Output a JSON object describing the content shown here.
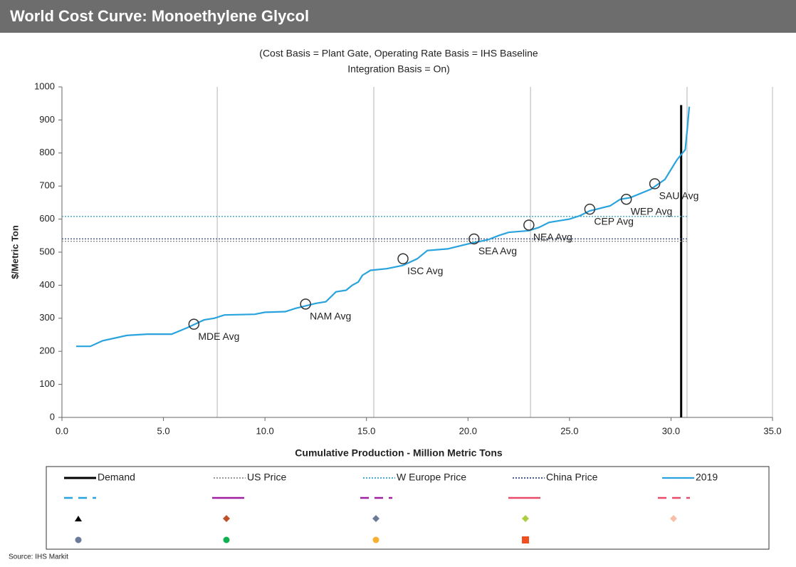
{
  "chart_data": {
    "type": "line",
    "title": "World Cost Curve:  Monoethylene Glycol",
    "subtitle": [
      "(Cost Basis = Plant Gate, Operating Rate Basis = IHS Baseline",
      "Integration Basis = On)"
    ],
    "xlabel": "Cumulative Production - Million Metric Tons",
    "ylabel": "$/Metric Ton",
    "source": "Source: IHS Markit",
    "xlim": [
      0,
      35
    ],
    "ylim": [
      0,
      1000
    ],
    "xticks": [
      {
        "value": 0,
        "label": "0.0"
      },
      {
        "value": 5,
        "label": "5.0"
      },
      {
        "value": 10,
        "label": "10.0"
      },
      {
        "value": 15,
        "label": "15.0"
      },
      {
        "value": 20,
        "label": "20.0"
      },
      {
        "value": 25,
        "label": "25.0"
      },
      {
        "value": 30,
        "label": "30.0"
      },
      {
        "value": 35,
        "label": "35.0"
      }
    ],
    "yticks": [
      0,
      100,
      200,
      300,
      400,
      500,
      600,
      700,
      800,
      900,
      1000
    ],
    "vertical_lines": [
      7.65,
      15.36,
      23.08,
      30.79
    ],
    "series": [
      {
        "name": "Demand",
        "color": "#000000",
        "dash": "solid",
        "width": 3,
        "x": [
          30.5,
          30.5
        ],
        "values": [
          0,
          945
        ]
      },
      {
        "name": "US Price",
        "color": "#9a9a9a",
        "dash": "dotted",
        "width": 1.5,
        "x": [
          0,
          30.8
        ],
        "values": [
          533,
          533
        ]
      },
      {
        "name": "W Europe Price",
        "color": "#4bacc6",
        "dash": "dotted",
        "width": 1.5,
        "x": [
          0,
          30.8
        ],
        "values": [
          608,
          608
        ]
      },
      {
        "name": "China Price",
        "color": "#4a5a8a",
        "dash": "dotted",
        "width": 1.5,
        "x": [
          0,
          30.8
        ],
        "values": [
          540,
          540
        ]
      },
      {
        "name": "2019",
        "color": "#29a3dd",
        "dash": "solid",
        "width": 2.2,
        "x": [
          0.7,
          1.4,
          2,
          3.2,
          4.2,
          5.4,
          6.2,
          7,
          7.5,
          8,
          9.5,
          10,
          11,
          11.5,
          12.5,
          13,
          13.5,
          14,
          14.3,
          14.6,
          14.8,
          15.2,
          16,
          16.8,
          17.5,
          18,
          19,
          20,
          21,
          21.5,
          22,
          23,
          23.5,
          24,
          25,
          25.5,
          26,
          27,
          27.5,
          28,
          29,
          29.7,
          30,
          30.3,
          30.7,
          30.8,
          30.9
        ],
        "values": [
          215,
          215,
          232,
          248,
          252,
          252,
          272,
          295,
          300,
          310,
          312,
          318,
          320,
          330,
          345,
          350,
          380,
          385,
          400,
          410,
          430,
          445,
          450,
          460,
          480,
          505,
          510,
          525,
          538,
          550,
          560,
          565,
          575,
          590,
          600,
          610,
          625,
          640,
          660,
          665,
          690,
          720,
          750,
          780,
          810,
          870,
          940
        ]
      }
    ],
    "annotations": [
      {
        "label": "MDE Avg",
        "x": 6.5,
        "y": 282
      },
      {
        "label": "NAM Avg",
        "x": 12,
        "y": 343
      },
      {
        "label": "ISC Avg",
        "x": 16.8,
        "y": 480
      },
      {
        "label": "SEA Avg",
        "x": 20.3,
        "y": 540
      },
      {
        "label": "NEA Avg",
        "x": 23,
        "y": 582
      },
      {
        "label": "CEP Avg",
        "x": 26,
        "y": 630
      },
      {
        "label": "WEP Avg",
        "x": 27.8,
        "y": 660
      },
      {
        "label": "SAU Avg",
        "x": 29.2,
        "y": 707
      }
    ]
  }
}
